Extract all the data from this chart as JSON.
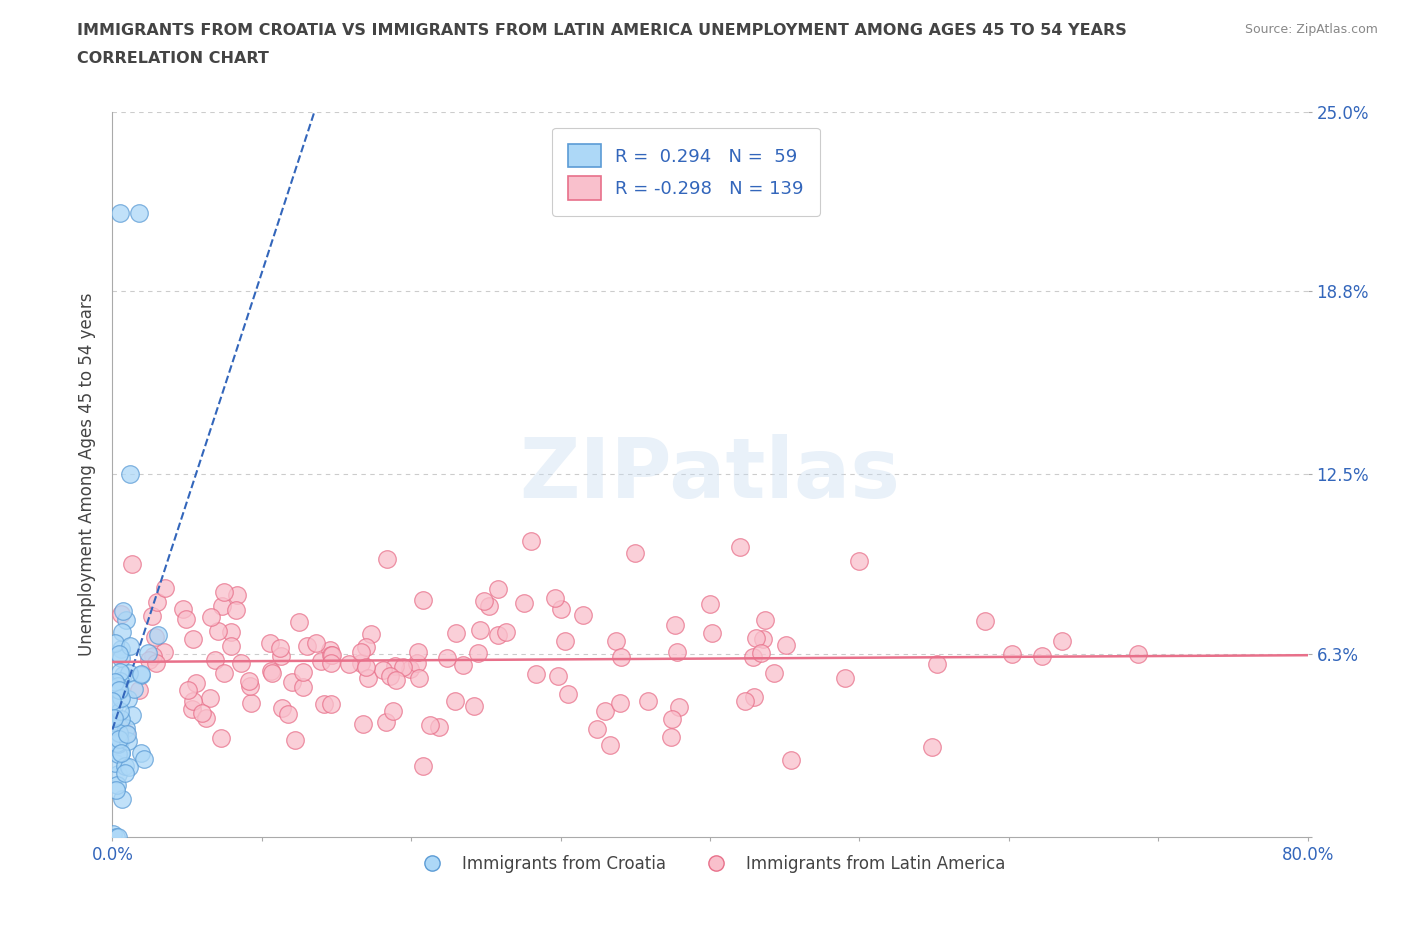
{
  "title_line1": "IMMIGRANTS FROM CROATIA VS IMMIGRANTS FROM LATIN AMERICA UNEMPLOYMENT AMONG AGES 45 TO 54 YEARS",
  "title_line2": "CORRELATION CHART",
  "source": "Source: ZipAtlas.com",
  "ylabel": "Unemployment Among Ages 45 to 54 years",
  "xlim": [
    0.0,
    0.8
  ],
  "ylim": [
    0.0,
    0.25
  ],
  "xticks": [
    0.0,
    0.1,
    0.2,
    0.3,
    0.4,
    0.5,
    0.6,
    0.7,
    0.8
  ],
  "xticklabels": [
    "0.0%",
    "",
    "",
    "",
    "",
    "",
    "",
    "",
    "80.0%"
  ],
  "ytick_values": [
    0.0,
    0.063,
    0.125,
    0.188,
    0.25
  ],
  "ytick_labels": [
    "",
    "6.3%",
    "12.5%",
    "18.8%",
    "25.0%"
  ],
  "croatia_color": "#ADD8F7",
  "croatia_edge": "#5B9BD5",
  "latin_color": "#F9C0CC",
  "latin_edge": "#E8708A",
  "croatia_R": 0.294,
  "croatia_N": 59,
  "latin_R": -0.298,
  "latin_N": 139,
  "watermark": "ZIPatlas",
  "legend_label_croatia": "Immigrants from Croatia",
  "legend_label_latin": "Immigrants from Latin America",
  "grid_color": "#CCCCCC",
  "background_color": "#FFFFFF",
  "title_color": "#444444",
  "trend_blue_color": "#3366BB",
  "trend_pink_color": "#E8708A",
  "tick_label_color": "#3366BB",
  "legend_text_color": "#3366BB"
}
